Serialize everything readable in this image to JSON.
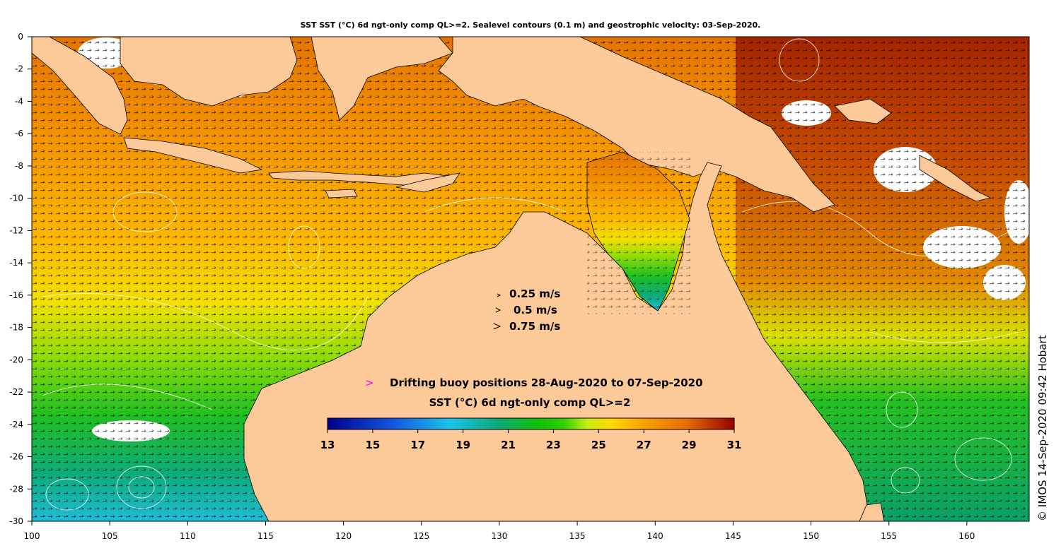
{
  "title": "SST SST (°C) 6d ngt-only comp QL>=2. Sealevel contours (0.1 m) and geostrophic velocity: 03-Sep-2020.",
  "copyright": "© IMOS 14-Sep-2020 09:42 Hobart",
  "axes": {
    "x_range": [
      100,
      164
    ],
    "y_range": [
      -30,
      0
    ],
    "x_ticks": [
      "100",
      "105",
      "110",
      "115",
      "120",
      "125",
      "130",
      "135",
      "140",
      "145",
      "150",
      "155",
      "160"
    ],
    "y_ticks": [
      "0",
      "-2",
      "-4",
      "-6",
      "-8",
      "-10",
      "-12",
      "-14",
      "-16",
      "-18",
      "-20",
      "-22",
      "-24",
      "-26",
      "-28",
      "-30"
    ]
  },
  "velocity_key": [
    {
      "label": "0.25 m/s",
      "speed": 0.25
    },
    {
      "label": "0.5 m/s",
      "speed": 0.5
    },
    {
      "label": "0.75 m/s",
      "speed": 0.75
    }
  ],
  "buoy_legend": {
    "label": "Drifting buoy positions 28-Aug-2020 to 07-Sep-2020",
    "marker": ">",
    "color": "#ff00ff"
  },
  "colorbar": {
    "title": "SST (°C) 6d ngt-only comp QL>=2",
    "range": [
      13,
      31
    ],
    "ticks": [
      "13",
      "15",
      "17",
      "19",
      "21",
      "23",
      "25",
      "27",
      "29",
      "31"
    ]
  },
  "colors": {
    "land": "#fcc998",
    "cloud": "#ffffff",
    "contour": "#ffffff",
    "arrow": "#000000"
  }
}
